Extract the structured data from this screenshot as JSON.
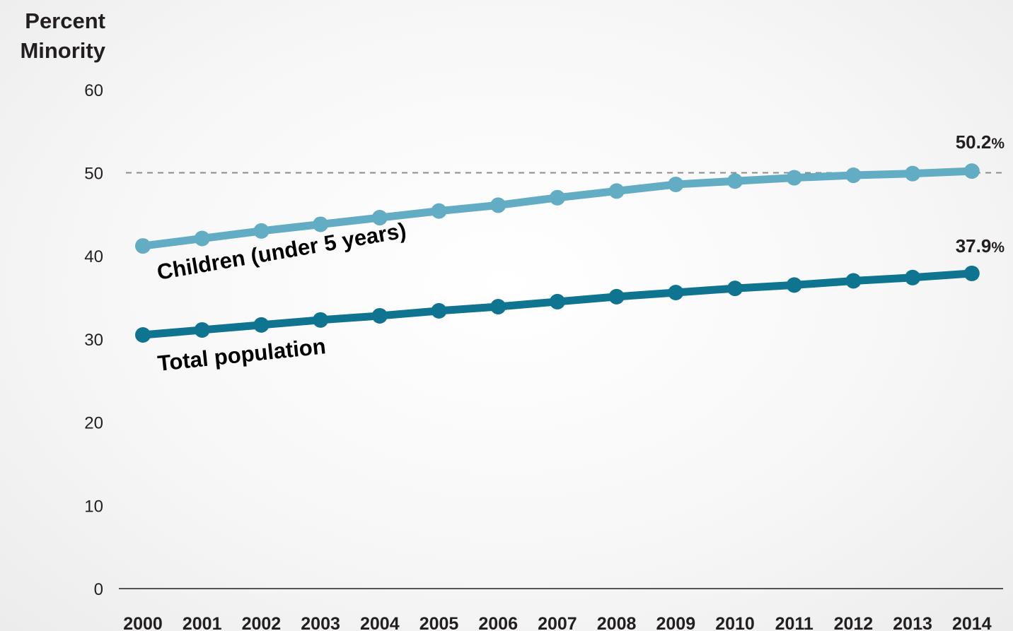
{
  "chart_data": {
    "type": "line",
    "ylabel": [
      "Percent",
      "Minority"
    ],
    "ylim": [
      0,
      60
    ],
    "yticks": [
      0,
      10,
      20,
      30,
      40,
      50,
      60
    ],
    "reference_line": {
      "y": 50,
      "style": "dashed",
      "color": "#8c8c8c"
    },
    "x": [
      "2000",
      "2001",
      "2002",
      "2003",
      "2004",
      "2005",
      "2006",
      "2007",
      "2008",
      "2009",
      "2010",
      "2011",
      "2012",
      "2013",
      "2014"
    ],
    "series": [
      {
        "name": "Children (under 5 years)",
        "color": "#62adc4",
        "end_label": {
          "value": "50.2",
          "unit": "%"
        },
        "values": [
          41.2,
          42.1,
          43.0,
          43.8,
          44.6,
          45.4,
          46.1,
          47.0,
          47.8,
          48.6,
          49.0,
          49.4,
          49.7,
          49.9,
          50.2
        ]
      },
      {
        "name": "Total population",
        "color": "#0e7490",
        "end_label": {
          "value": "37.9",
          "unit": "%"
        },
        "values": [
          30.5,
          31.1,
          31.7,
          32.3,
          32.8,
          33.4,
          33.9,
          34.5,
          35.1,
          35.6,
          36.1,
          36.5,
          37.0,
          37.4,
          37.9
        ]
      }
    ]
  }
}
